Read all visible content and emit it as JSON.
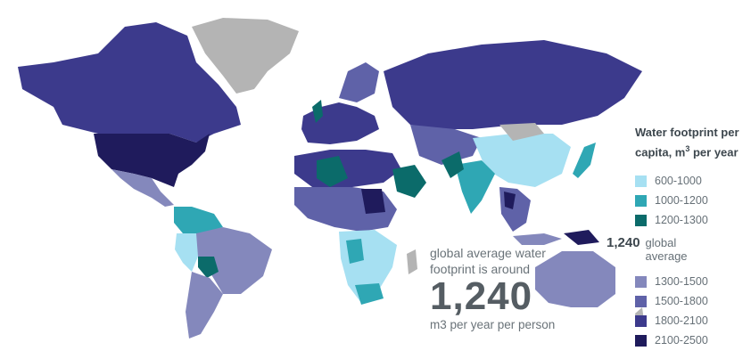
{
  "legend": {
    "title_line1": "Water footprint per",
    "title_line2": "capita, m",
    "title_sup": "3",
    "title_line2_rest": " per year",
    "high_bins": [
      {
        "label": "600-1000",
        "color": "#a6e0f2"
      },
      {
        "label": "1000-1200",
        "color": "#2fa7b4"
      },
      {
        "label": "1200-1300",
        "color": "#0b6b6a"
      }
    ],
    "average": {
      "value": "1,240",
      "label": "global average"
    },
    "low_bins": [
      {
        "label": "1300-1500",
        "color": "#8488bc"
      },
      {
        "label": "1500-1800",
        "color": "#5f62a8"
      },
      {
        "label": "1800-2100",
        "color": "#3c3a8c"
      },
      {
        "label": "2100-2500",
        "color": "#1f1b5c"
      }
    ]
  },
  "annotation": {
    "line1": "global average water",
    "line2": "footprint is around",
    "value": "1,240",
    "line3": "m3 per year per person"
  },
  "map_colors": {
    "no_data": "#b4b4b4",
    "ocean": "#ffffff"
  }
}
